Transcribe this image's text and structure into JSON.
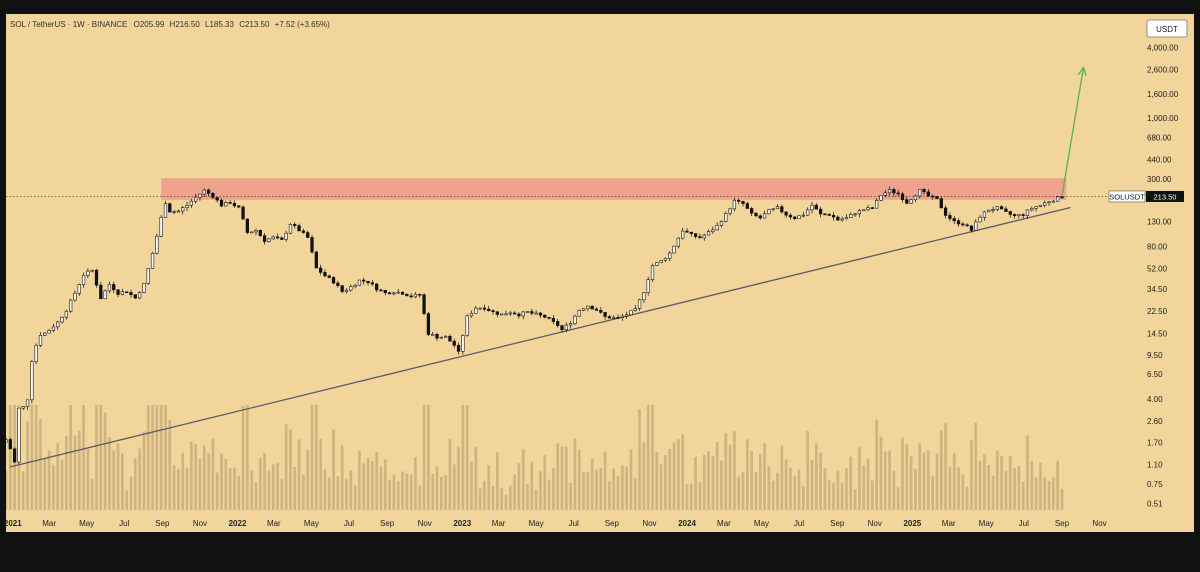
{
  "header": {
    "symbol": "SOL / TetherUS · 1W · BINANCE",
    "open": "O205.99",
    "high": "H216.50",
    "low": "L185.33",
    "close": "C213.50",
    "change": "+7.52 (+3.65%)"
  },
  "currency_button": "USDT",
  "price_tag": {
    "symbol": "SOLUSDT",
    "value": "213.50"
  },
  "colors": {
    "background": "#f2d59b",
    "resistance_zone": "#ef9a8b",
    "trendline": "#5a5a6a",
    "projection_arrow": "#5fb35f",
    "candle_up": "#ffffff",
    "candle_down": "#111111",
    "volume": "#c9ae7e"
  },
  "chart_data": {
    "type": "candlestick",
    "scale": "log",
    "y_ticks": [
      "4,000.00",
      "2,600.00",
      "1,600.00",
      "1,000.00",
      "680.00",
      "440.00",
      "300.00",
      "130.00",
      "80.00",
      "52.00",
      "34.50",
      "22.50",
      "14.50",
      "9.50",
      "6.50",
      "4.00",
      "2.60",
      "1.70",
      "1.10",
      "0.75",
      "0.51"
    ],
    "x_ticks": [
      "2021",
      "Mar",
      "May",
      "Jul",
      "Sep",
      "Nov",
      "2022",
      "Mar",
      "May",
      "Jul",
      "Sep",
      "Nov",
      "2023",
      "Mar",
      "May",
      "Jul",
      "Sep",
      "Nov",
      "2024",
      "Mar",
      "May",
      "Jul",
      "Sep",
      "Nov",
      "2025",
      "Mar",
      "May",
      "Jul",
      "Sep",
      "Nov"
    ],
    "ylim": [
      0.45,
      5000
    ],
    "x_range": [
      "2020-12-21",
      "2025-12-01"
    ],
    "last_price": 213.5,
    "resistance_zone": {
      "low": 200,
      "high": 305,
      "from": "2021-08-30",
      "to": "2025-09-08"
    },
    "trendline": {
      "from": {
        "date": "2020-12-28",
        "price": 1.05
      },
      "to": {
        "date": "2025-09-15",
        "price": 172
      }
    },
    "projection": {
      "from": {
        "date": "2025-09-01",
        "price": 215
      },
      "to": {
        "date": "2025-10-06",
        "price": 2700
      }
    },
    "price_path": [
      [
        "2020-12-21",
        1.8
      ],
      [
        "2020-12-28",
        1.5
      ],
      [
        "2021-01-04",
        1.15
      ],
      [
        "2021-01-11",
        3.3
      ],
      [
        "2021-01-18",
        3.4
      ],
      [
        "2021-01-25",
        4.0
      ],
      [
        "2021-02-01",
        8.5
      ],
      [
        "2021-02-08",
        11.5
      ],
      [
        "2021-02-15",
        14.2
      ],
      [
        "2021-02-22",
        14.5
      ],
      [
        "2021-03-01",
        15.5
      ],
      [
        "2021-03-15",
        18
      ],
      [
        "2021-03-29",
        23
      ],
      [
        "2021-04-12",
        32
      ],
      [
        "2021-04-26",
        46
      ],
      [
        "2021-05-10",
        50
      ],
      [
        "2021-05-17",
        38
      ],
      [
        "2021-05-24",
        29
      ],
      [
        "2021-06-07",
        38
      ],
      [
        "2021-06-21",
        32
      ],
      [
        "2021-07-05",
        33
      ],
      [
        "2021-07-19",
        29
      ],
      [
        "2021-08-02",
        38
      ],
      [
        "2021-08-16",
        70
      ],
      [
        "2021-08-23",
        98
      ],
      [
        "2021-08-30",
        140
      ],
      [
        "2021-09-06",
        190
      ],
      [
        "2021-09-13",
        160
      ],
      [
        "2021-09-27",
        160
      ],
      [
        "2021-10-11",
        180
      ],
      [
        "2021-10-25",
        210
      ],
      [
        "2021-11-08",
        240
      ],
      [
        "2021-11-22",
        215
      ],
      [
        "2021-12-06",
        180
      ],
      [
        "2021-12-20",
        190
      ],
      [
        "2022-01-03",
        170
      ],
      [
        "2022-01-17",
        105
      ],
      [
        "2022-01-31",
        110
      ],
      [
        "2022-02-14",
        90
      ],
      [
        "2022-02-28",
        95
      ],
      [
        "2022-03-14",
        90
      ],
      [
        "2022-03-28",
        125
      ],
      [
        "2022-04-11",
        110
      ],
      [
        "2022-04-25",
        95
      ],
      [
        "2022-05-09",
        52
      ],
      [
        "2022-05-23",
        45
      ],
      [
        "2022-06-06",
        40
      ],
      [
        "2022-06-20",
        33
      ],
      [
        "2022-07-04",
        36
      ],
      [
        "2022-07-18",
        41
      ],
      [
        "2022-08-01",
        40
      ],
      [
        "2022-08-15",
        35
      ],
      [
        "2022-08-29",
        32
      ],
      [
        "2022-09-12",
        33
      ],
      [
        "2022-09-26",
        32
      ],
      [
        "2022-10-10",
        30
      ],
      [
        "2022-10-24",
        31
      ],
      [
        "2022-11-07",
        14.5
      ],
      [
        "2022-11-21",
        13.5
      ],
      [
        "2022-12-05",
        13.5
      ],
      [
        "2022-12-19",
        11.5
      ],
      [
        "2022-12-26",
        9.9
      ],
      [
        "2023-01-09",
        20
      ],
      [
        "2023-01-23",
        24
      ],
      [
        "2023-02-06",
        24
      ],
      [
        "2023-02-20",
        22
      ],
      [
        "2023-03-06",
        21
      ],
      [
        "2023-03-20",
        22
      ],
      [
        "2023-04-03",
        21
      ],
      [
        "2023-04-17",
        22
      ],
      [
        "2023-05-01",
        21
      ],
      [
        "2023-05-15",
        20
      ],
      [
        "2023-06-05",
        17
      ],
      [
        "2023-06-12",
        15.5
      ],
      [
        "2023-06-26",
        18
      ],
      [
        "2023-07-10",
        23
      ],
      [
        "2023-07-24",
        25
      ],
      [
        "2023-08-07",
        23
      ],
      [
        "2023-08-21",
        20
      ],
      [
        "2023-09-11",
        19.5
      ],
      [
        "2023-09-25",
        21
      ],
      [
        "2023-10-09",
        23
      ],
      [
        "2023-10-23",
        33
      ],
      [
        "2023-11-06",
        55
      ],
      [
        "2023-11-20",
        60
      ],
      [
        "2023-12-04",
        70
      ],
      [
        "2023-12-25",
        110
      ],
      [
        "2024-01-08",
        100
      ],
      [
        "2024-01-22",
        95
      ],
      [
        "2024-02-05",
        105
      ],
      [
        "2024-02-19",
        120
      ],
      [
        "2024-03-04",
        150
      ],
      [
        "2024-03-18",
        195
      ],
      [
        "2024-04-01",
        185
      ],
      [
        "2024-04-15",
        150
      ],
      [
        "2024-04-29",
        140
      ],
      [
        "2024-05-13",
        160
      ],
      [
        "2024-05-27",
        170
      ],
      [
        "2024-06-10",
        150
      ],
      [
        "2024-06-24",
        140
      ],
      [
        "2024-07-08",
        150
      ],
      [
        "2024-07-22",
        180
      ],
      [
        "2024-08-05",
        150
      ],
      [
        "2024-08-19",
        150
      ],
      [
        "2024-09-02",
        135
      ],
      [
        "2024-09-16",
        140
      ],
      [
        "2024-09-30",
        155
      ],
      [
        "2024-10-14",
        165
      ],
      [
        "2024-10-28",
        170
      ],
      [
        "2024-11-11",
        220
      ],
      [
        "2024-11-25",
        240
      ],
      [
        "2024-12-09",
        225
      ],
      [
        "2024-12-23",
        190
      ],
      [
        "2025-01-13",
        240
      ],
      [
        "2025-01-27",
        215
      ],
      [
        "2025-02-10",
        200
      ],
      [
        "2025-02-24",
        150
      ],
      [
        "2025-03-10",
        130
      ],
      [
        "2025-03-24",
        125
      ],
      [
        "2025-04-07",
        110
      ],
      [
        "2025-04-21",
        145
      ],
      [
        "2025-05-05",
        165
      ],
      [
        "2025-05-19",
        170
      ],
      [
        "2025-06-02",
        155
      ],
      [
        "2025-06-16",
        145
      ],
      [
        "2025-06-30",
        150
      ],
      [
        "2025-07-14",
        170
      ],
      [
        "2025-07-28",
        180
      ],
      [
        "2025-08-11",
        195
      ],
      [
        "2025-08-25",
        206
      ],
      [
        "2025-09-01",
        213.5
      ]
    ]
  }
}
